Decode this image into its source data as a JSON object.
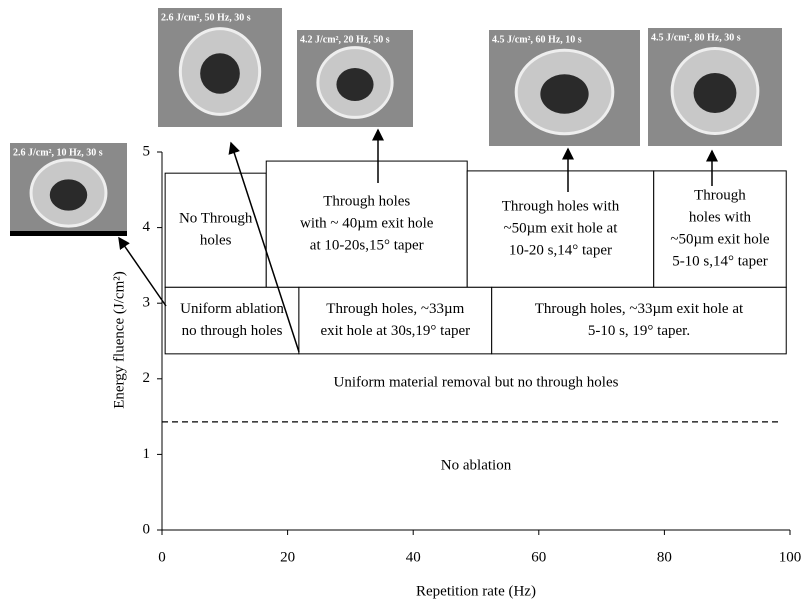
{
  "chart_data": {
    "type": "region",
    "x_label": "Repetition rate (Hz)",
    "y_label": "Energy fluence (J/cm²)",
    "xlim": [
      0,
      100
    ],
    "xticks": [
      0,
      20,
      40,
      60,
      80,
      100
    ],
    "ylim": [
      0,
      5
    ],
    "yticks": [
      0,
      1,
      2,
      3,
      4,
      5
    ],
    "regions": [
      {
        "lines": [
          "No Through",
          "holes"
        ],
        "x": [
          0.5,
          16.6
        ],
        "y": [
          3.21,
          4.72
        ]
      },
      {
        "lines": [
          "Through holes",
          "with ~ 40µm exit hole",
          "at 10-20s,15° taper"
        ],
        "x": [
          16.6,
          48.6
        ],
        "y": [
          3.21,
          4.88
        ]
      },
      {
        "lines": [
          "Through holes with",
          "~50µm exit hole at",
          "10-20 s,14° taper"
        ],
        "x": [
          48.6,
          78.3
        ],
        "y": [
          3.21,
          4.75
        ]
      },
      {
        "lines": [
          "Through",
          "holes with",
          "~50µm exit hole",
          "5-10 s,14° taper"
        ],
        "x": [
          78.3,
          99.4
        ],
        "y": [
          3.21,
          4.75
        ]
      },
      {
        "lines": [
          "Uniform ablation",
          "no through holes"
        ],
        "x": [
          0.5,
          21.8
        ],
        "y": [
          2.33,
          3.21
        ]
      },
      {
        "lines": [
          "Through holes, ~33µm",
          "exit hole at 30s,19° taper"
        ],
        "x": [
          21.8,
          52.5
        ],
        "y": [
          2.33,
          3.21
        ]
      },
      {
        "lines": [
          "Through holes, ~33µm exit hole at",
          "5-10 s, 19° taper."
        ],
        "x": [
          52.5,
          99.4
        ],
        "y": [
          2.33,
          3.21
        ]
      }
    ],
    "threshold": 1.43,
    "annotations": [
      "Uniform material removal but no through holes",
      "No ablation"
    ],
    "images": [
      "2.6 J/cm², 10 Hz, 30 s",
      "2.6 J/cm², 50 Hz, 30 s",
      "4.2 J/cm², 20 Hz, 50 s",
      "4.5 J/cm², 60 Hz, 10 s",
      "4.5 J/cm², 80 Hz, 30 s"
    ]
  }
}
